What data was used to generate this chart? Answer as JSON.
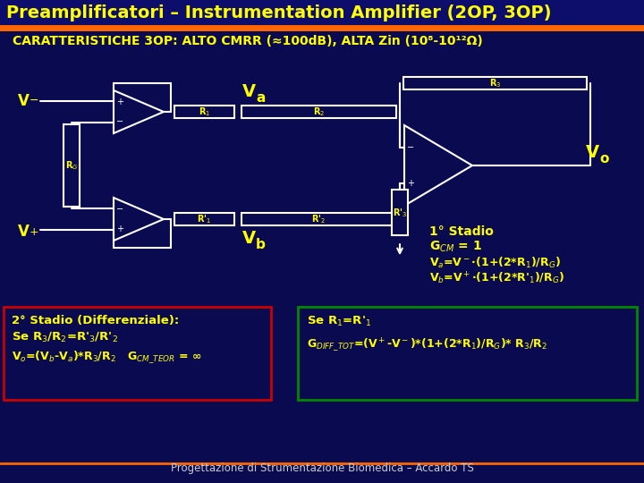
{
  "title": "Preamplificatori – Instrumentation Amplifier (2OP, 3OP)",
  "title_color": "#FFFF00",
  "title_bg": "#1a1a6e",
  "header_line_color": "#FF6600",
  "bg_color": "#0a0a50",
  "subtitle": "CARATTERISTICHE 3OP: ALTO CMRR (≈100dB), ALTA Zin (10⁸-10¹²Ω)",
  "subtitle_color": "#FFFF00",
  "circuit_color": "#FFFFFF",
  "label_color": "#FFFF00",
  "box1_color": "#CC0000",
  "box2_color": "#008800",
  "footer_color": "#CCCCCC",
  "footer_text": "Progettazione di Strumentazione Biomedica – Accardo TS"
}
